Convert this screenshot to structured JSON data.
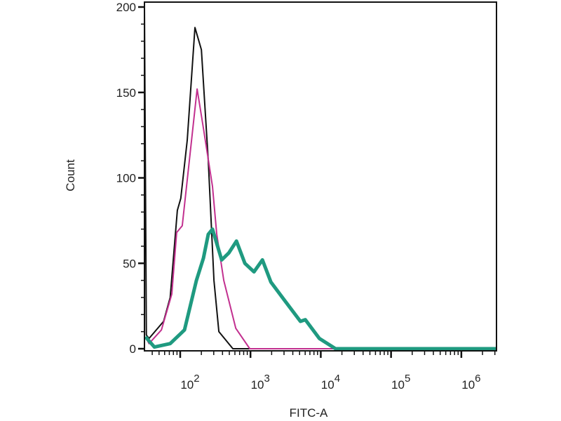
{
  "chart_data": {
    "type": "line",
    "title": "",
    "xlabel": "FITC-A",
    "ylabel": "Count",
    "x_scale": "log",
    "xlim": [
      31,
      3162278
    ],
    "ylim": [
      0,
      200
    ],
    "grid": false,
    "x_ticks": [
      {
        "base": "10",
        "exp": "2",
        "value": 100
      },
      {
        "base": "10",
        "exp": "3",
        "value": 1000
      },
      {
        "base": "10",
        "exp": "4",
        "value": 10000
      },
      {
        "base": "10",
        "exp": "5",
        "value": 100000
      },
      {
        "base": "10",
        "exp": "6",
        "value": 1000000
      }
    ],
    "y_ticks": [
      "0",
      "50",
      "100",
      "150",
      "200"
    ],
    "series": [
      {
        "color": "#111111",
        "line": "thin",
        "x": [
          31,
          33,
          36,
          58,
          72,
          91,
          102,
          126,
          162,
          200,
          251,
          302,
          355,
          562,
          3162278
        ],
        "y": [
          200,
          8,
          6,
          16,
          30,
          81,
          88,
          122,
          188,
          175,
          110,
          40,
          10,
          0,
          0
        ]
      },
      {
        "color": "#c2308f",
        "line": "thin",
        "x": [
          33,
          36,
          54,
          76,
          89,
          107,
          174,
          214,
          288,
          331,
          417,
          617,
          977,
          3162278
        ],
        "y": [
          6,
          3,
          11,
          32,
          68,
          72,
          152,
          129,
          95,
          67,
          40,
          12,
          0,
          0
        ]
      },
      {
        "color": "#1f9a80",
        "line": "thick",
        "x": [
          32,
          43,
          72,
          115,
          170,
          214,
          251,
          288,
          389,
          490,
          631,
          832,
          1122,
          1479,
          1950,
          3090,
          5129,
          6026,
          9550,
          16218,
          3162278
        ],
        "y": [
          7,
          1,
          3,
          11,
          40,
          53,
          67,
          70,
          52,
          56,
          63,
          50,
          45,
          52,
          39,
          28,
          16,
          17,
          6,
          0,
          0
        ]
      }
    ]
  }
}
